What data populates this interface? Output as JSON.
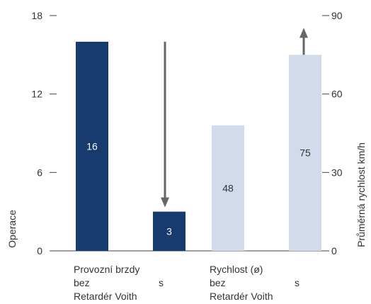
{
  "chart_data": {
    "type": "bar",
    "left_axis": {
      "label": "Operace",
      "ylim": [
        0,
        18
      ],
      "ticks": [
        "0",
        "6",
        "12",
        "18"
      ]
    },
    "right_axis": {
      "label": "Průměrná rychlost km/h",
      "ylim": [
        0,
        90
      ],
      "ticks": [
        "0",
        "30",
        "60",
        "90"
      ]
    },
    "groups": [
      {
        "line1": "Provozní brzdy",
        "axis": "left",
        "color": "#173a6f",
        "label_color": "#ffffff",
        "arrow_direction": "down",
        "bars": [
          {
            "value": 16,
            "label": "16"
          },
          {
            "value": 3,
            "label": "3"
          }
        ]
      },
      {
        "line1": "Rychlost (ø)",
        "axis": "right",
        "color": "#d1dbec",
        "label_color": "#333333",
        "arrow_direction": "up",
        "bars": [
          {
            "value": 48,
            "label": "48"
          },
          {
            "value": 75,
            "label": "75"
          }
        ]
      }
    ],
    "sub_labels": {
      "bez": "bez",
      "s": "s",
      "retarder": "Retardér Voith"
    },
    "arrow_color": "#666666",
    "axis_color": "#444444",
    "grid": false,
    "legend": "none"
  }
}
